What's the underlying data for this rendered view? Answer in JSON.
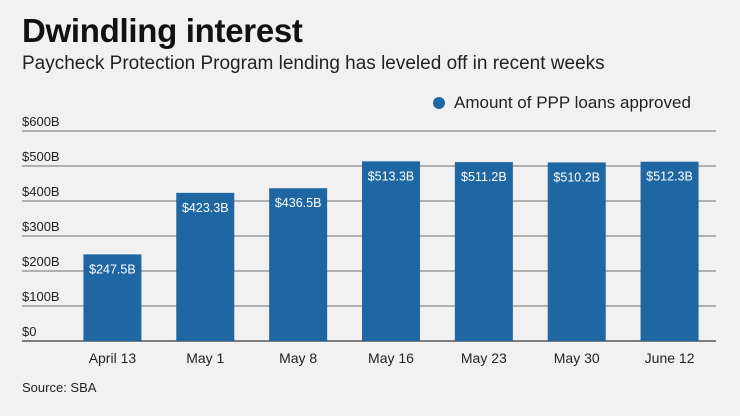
{
  "chart_data": {
    "type": "bar",
    "title": "Dwindling interest",
    "subtitle": "Paycheck Protection Program lending has leveled off in recent weeks",
    "categories": [
      "April 13",
      "May 1",
      "May 8",
      "May 16",
      "May 23",
      "May 30",
      "June 12"
    ],
    "series": [
      {
        "name": "Amount of PPP loans approved",
        "values": [
          247.5,
          423.3,
          436.5,
          513.3,
          511.2,
          510.2,
          512.3
        ],
        "data_labels": [
          "$247.5B",
          "$423.3B",
          "$436.5B",
          "$513.3B",
          "$511.2B",
          "$510.2B",
          "$512.3B"
        ],
        "color": "#1f67a3"
      }
    ],
    "ylim": [
      0,
      600
    ],
    "yticks": [
      0,
      100,
      200,
      300,
      400,
      500,
      600
    ],
    "ytick_labels": [
      "$0",
      "$100B",
      "$200B",
      "$300B",
      "$400B",
      "$500B",
      "$600B"
    ],
    "grid": true,
    "legend": "top-right",
    "source": "Source: SBA"
  }
}
